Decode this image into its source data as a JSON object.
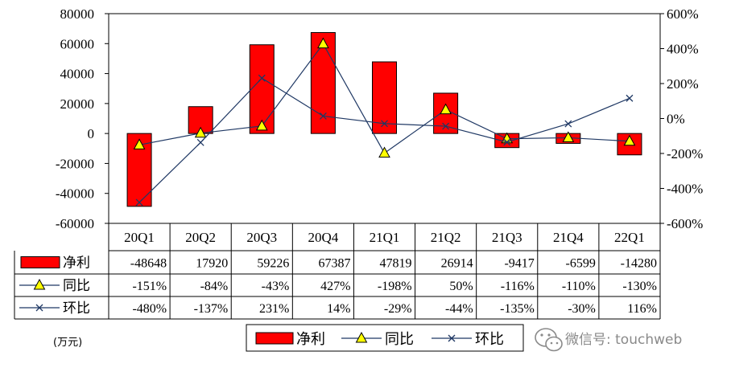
{
  "chart_data": {
    "type": "bar",
    "categories": [
      "20Q1",
      "20Q2",
      "20Q3",
      "20Q4",
      "21Q1",
      "21Q2",
      "21Q3",
      "21Q4",
      "22Q1"
    ],
    "series": [
      {
        "name": "净利",
        "kind": "bar",
        "axis": "left",
        "color": "#ff0000",
        "values": [
          -48648,
          17920,
          59226,
          67387,
          47819,
          26914,
          -9417,
          -6599,
          -14280
        ],
        "labels": [
          "-48648",
          "17920",
          "59226",
          "67387",
          "47819",
          "26914",
          "-9417",
          "-6599",
          "-14280"
        ]
      },
      {
        "name": "同比",
        "kind": "line",
        "axis": "right",
        "marker": "triangle",
        "color": "#1f3864",
        "values": [
          -151,
          -84,
          -43,
          427,
          -198,
          50,
          -116,
          -110,
          -130
        ],
        "labels": [
          "-151%",
          "-84%",
          "-43%",
          "427%",
          "-198%",
          "50%",
          "-116%",
          "-110%",
          "-130%"
        ]
      },
      {
        "name": "环比",
        "kind": "line",
        "axis": "right",
        "marker": "x",
        "color": "#1f3864",
        "values": [
          -480,
          -137,
          231,
          14,
          -29,
          -44,
          -135,
          -30,
          116
        ],
        "labels": [
          "-480%",
          "-137%",
          "231%",
          "14%",
          "-29%",
          "-44%",
          "-135%",
          "-30%",
          "116%"
        ]
      }
    ],
    "ylim_left": [
      -60000,
      80000
    ],
    "yticks_left": [
      "80000",
      "60000",
      "40000",
      "20000",
      "0",
      "-20000",
      "-40000",
      "-60000"
    ],
    "ylim_right": [
      -600,
      600
    ],
    "yticks_right": [
      "600%",
      "400%",
      "200%",
      "0%",
      "-200%",
      "-400%",
      "-600%"
    ],
    "unit_label": "(万元)",
    "data_table": true,
    "legend": [
      "净利",
      "同比",
      "环比"
    ],
    "legend_placement": "bottom"
  },
  "watermark": {
    "text": "微信号: touchweb",
    "icon": "wechat-icon"
  }
}
